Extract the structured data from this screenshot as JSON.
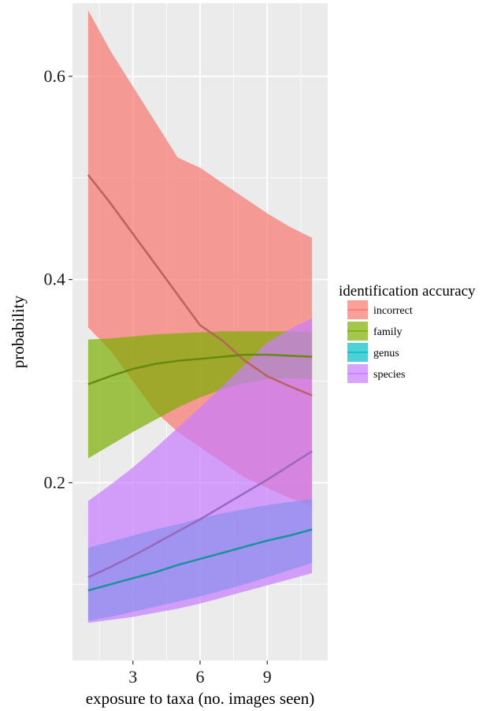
{
  "chart_data": {
    "type": "area",
    "title": "",
    "xlabel": "exposure to taxa (no. images seen)",
    "ylabel": "probability",
    "xlim": [
      0.3,
      11.7
    ],
    "ylim": [
      0.025,
      0.672
    ],
    "x_ticks": [
      3,
      6,
      9
    ],
    "x_tick_labels": [
      "3",
      "6",
      "9"
    ],
    "y_ticks": [
      0.2,
      0.4,
      0.6
    ],
    "y_tick_labels": [
      "0.2",
      "0.4",
      "0.6"
    ],
    "grid": true,
    "panel_background": "#EBEBEB",
    "legend": {
      "title": "identification accuracy",
      "position": "right"
    },
    "x": [
      1,
      2,
      3,
      4,
      5,
      6,
      7,
      8,
      9,
      10,
      11
    ],
    "series": [
      {
        "name": "incorrect",
        "color": "#F8766D",
        "mean": [
          0.503,
          0.475,
          0.445,
          0.415,
          0.385,
          0.355,
          0.34,
          0.32,
          0.305,
          0.295,
          0.286
        ],
        "lower": [
          0.353,
          0.33,
          0.3,
          0.27,
          0.25,
          0.235,
          0.22,
          0.205,
          0.195,
          0.185,
          0.177
        ],
        "upper": [
          0.665,
          0.625,
          0.59,
          0.555,
          0.52,
          0.51,
          0.495,
          0.48,
          0.465,
          0.452,
          0.441
        ]
      },
      {
        "name": "family",
        "color": "#7CAE00",
        "mean": [
          0.297,
          0.305,
          0.312,
          0.317,
          0.32,
          0.322,
          0.324,
          0.326,
          0.326,
          0.325,
          0.324
        ],
        "lower": [
          0.224,
          0.237,
          0.25,
          0.262,
          0.274,
          0.284,
          0.292,
          0.298,
          0.302,
          0.303,
          0.302
        ],
        "upper": [
          0.341,
          0.342,
          0.344,
          0.346,
          0.347,
          0.348,
          0.349,
          0.349,
          0.349,
          0.349,
          0.348
        ]
      },
      {
        "name": "genus",
        "color": "#00BFC4",
        "mean": [
          0.094,
          0.1,
          0.106,
          0.112,
          0.119,
          0.125,
          0.131,
          0.137,
          0.143,
          0.148,
          0.154
        ],
        "lower": [
          0.064,
          0.068,
          0.073,
          0.078,
          0.083,
          0.088,
          0.094,
          0.1,
          0.107,
          0.114,
          0.121
        ],
        "upper": [
          0.136,
          0.142,
          0.148,
          0.154,
          0.159,
          0.165,
          0.17,
          0.174,
          0.178,
          0.181,
          0.184
        ]
      },
      {
        "name": "species",
        "color": "#C77CFF",
        "mean": [
          0.107,
          0.117,
          0.128,
          0.14,
          0.152,
          0.164,
          0.177,
          0.19,
          0.203,
          0.217,
          0.231
        ],
        "lower": [
          0.062,
          0.065,
          0.068,
          0.072,
          0.076,
          0.081,
          0.087,
          0.093,
          0.099,
          0.105,
          0.111
        ],
        "upper": [
          0.182,
          0.198,
          0.215,
          0.234,
          0.254,
          0.274,
          0.295,
          0.316,
          0.338,
          0.351,
          0.362
        ]
      }
    ]
  }
}
